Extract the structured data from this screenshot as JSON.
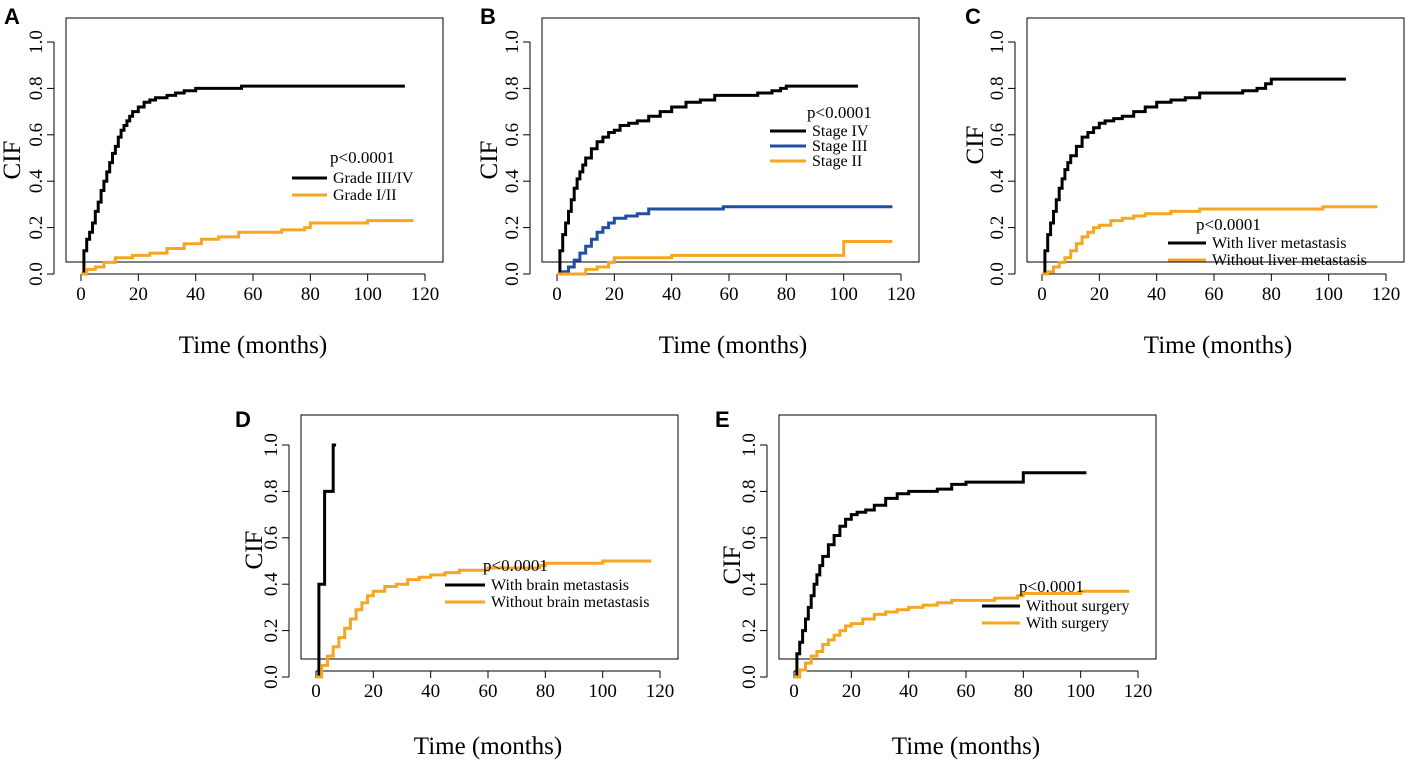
{
  "figure": {
    "panels": [
      "A",
      "B",
      "C",
      "D",
      "E"
    ]
  },
  "colors": {
    "black": "#000000",
    "orange": "#f5a623",
    "blue": "#1f4fa0"
  },
  "chart_data": [
    {
      "panel": "A",
      "type": "line",
      "xlabel": "Time (months)",
      "ylabel": "CIF",
      "xlim": [
        0,
        120
      ],
      "ylim": [
        0,
        1
      ],
      "xticks": [
        0,
        20,
        40,
        60,
        80,
        100,
        120
      ],
      "yticks": [
        0.0,
        0.2,
        0.4,
        0.6,
        0.8,
        1.0
      ],
      "pvalue": "p<0.0001",
      "series": [
        {
          "name": "Grade III/IV",
          "color": "#000000",
          "x": [
            0,
            1,
            2,
            3,
            4,
            5,
            6,
            7,
            8,
            9,
            10,
            11,
            12,
            13,
            14,
            15,
            16,
            17,
            18,
            20,
            22,
            24,
            26,
            28,
            30,
            33,
            36,
            40,
            45,
            50,
            56,
            60,
            70,
            80,
            90,
            100,
            113
          ],
          "y": [
            0.0,
            0.1,
            0.15,
            0.18,
            0.22,
            0.27,
            0.31,
            0.36,
            0.4,
            0.44,
            0.48,
            0.52,
            0.55,
            0.59,
            0.62,
            0.64,
            0.66,
            0.68,
            0.7,
            0.72,
            0.74,
            0.75,
            0.76,
            0.76,
            0.77,
            0.78,
            0.79,
            0.8,
            0.8,
            0.8,
            0.81,
            0.81,
            0.81,
            0.81,
            0.81,
            0.81,
            0.81
          ]
        },
        {
          "name": "Grade I/II",
          "color": "#f5a623",
          "x": [
            0,
            2,
            5,
            8,
            12,
            18,
            24,
            30,
            36,
            42,
            48,
            55,
            62,
            70,
            78,
            80,
            90,
            100,
            116
          ],
          "y": [
            0.0,
            0.02,
            0.03,
            0.05,
            0.07,
            0.08,
            0.09,
            0.11,
            0.13,
            0.15,
            0.16,
            0.18,
            0.18,
            0.19,
            0.2,
            0.22,
            0.22,
            0.23,
            0.23
          ]
        }
      ]
    },
    {
      "panel": "B",
      "type": "line",
      "xlabel": "Time (months)",
      "ylabel": "CIF",
      "xlim": [
        0,
        120
      ],
      "ylim": [
        0,
        1
      ],
      "xticks": [
        0,
        20,
        40,
        60,
        80,
        100,
        120
      ],
      "yticks": [
        0.0,
        0.2,
        0.4,
        0.6,
        0.8,
        1.0
      ],
      "pvalue": "p<0.0001",
      "series": [
        {
          "name": "Stage IV",
          "color": "#000000",
          "x": [
            0,
            1,
            2,
            3,
            4,
            5,
            6,
            7,
            8,
            9,
            10,
            12,
            14,
            16,
            18,
            20,
            22,
            25,
            28,
            32,
            36,
            40,
            45,
            50,
            55,
            60,
            70,
            75,
            78,
            80,
            90,
            105
          ],
          "y": [
            0.0,
            0.1,
            0.17,
            0.22,
            0.27,
            0.32,
            0.37,
            0.41,
            0.44,
            0.47,
            0.5,
            0.54,
            0.57,
            0.59,
            0.61,
            0.62,
            0.64,
            0.65,
            0.66,
            0.68,
            0.7,
            0.72,
            0.74,
            0.75,
            0.77,
            0.77,
            0.78,
            0.79,
            0.8,
            0.81,
            0.81,
            0.81
          ]
        },
        {
          "name": "Stage III",
          "color": "#1f4fa0",
          "x": [
            0,
            2,
            4,
            6,
            8,
            10,
            12,
            14,
            16,
            18,
            20,
            24,
            28,
            32,
            40,
            50,
            58,
            70,
            80,
            90,
            100,
            117
          ],
          "y": [
            0.0,
            0.01,
            0.03,
            0.06,
            0.09,
            0.12,
            0.15,
            0.18,
            0.2,
            0.22,
            0.24,
            0.25,
            0.26,
            0.28,
            0.28,
            0.28,
            0.29,
            0.29,
            0.29,
            0.29,
            0.29,
            0.29
          ]
        },
        {
          "name": "Stage II",
          "color": "#f5a623",
          "x": [
            0,
            5,
            10,
            14,
            18,
            20,
            30,
            40,
            60,
            80,
            99,
            100,
            117
          ],
          "y": [
            0.0,
            0.0,
            0.02,
            0.03,
            0.05,
            0.07,
            0.07,
            0.08,
            0.08,
            0.08,
            0.08,
            0.14,
            0.14
          ]
        }
      ]
    },
    {
      "panel": "C",
      "type": "line",
      "xlabel": "Time (months)",
      "ylabel": "CIF",
      "xlim": [
        0,
        120
      ],
      "ylim": [
        0,
        1
      ],
      "xticks": [
        0,
        20,
        40,
        60,
        80,
        100,
        120
      ],
      "yticks": [
        0.0,
        0.2,
        0.4,
        0.6,
        0.8,
        1.0
      ],
      "pvalue": "p<0.0001",
      "series": [
        {
          "name": "With liver metastasis",
          "color": "#000000",
          "x": [
            0,
            1,
            2,
            3,
            4,
            5,
            6,
            7,
            8,
            9,
            10,
            12,
            14,
            16,
            18,
            20,
            22,
            25,
            28,
            32,
            36,
            40,
            45,
            50,
            55,
            60,
            70,
            75,
            78,
            80,
            90,
            106
          ],
          "y": [
            0.0,
            0.1,
            0.17,
            0.22,
            0.27,
            0.32,
            0.37,
            0.41,
            0.45,
            0.48,
            0.51,
            0.55,
            0.59,
            0.61,
            0.63,
            0.65,
            0.66,
            0.67,
            0.68,
            0.7,
            0.72,
            0.74,
            0.75,
            0.76,
            0.78,
            0.78,
            0.79,
            0.8,
            0.82,
            0.84,
            0.84,
            0.84
          ]
        },
        {
          "name": "Without liver metastasis",
          "color": "#f5a623",
          "x": [
            0,
            2,
            4,
            6,
            8,
            10,
            12,
            14,
            16,
            18,
            20,
            24,
            28,
            32,
            36,
            40,
            45,
            50,
            55,
            60,
            70,
            80,
            90,
            98,
            117
          ],
          "y": [
            0.0,
            0.01,
            0.03,
            0.05,
            0.07,
            0.1,
            0.13,
            0.16,
            0.18,
            0.2,
            0.21,
            0.23,
            0.24,
            0.25,
            0.26,
            0.26,
            0.27,
            0.27,
            0.28,
            0.28,
            0.28,
            0.28,
            0.28,
            0.29,
            0.29
          ]
        }
      ]
    },
    {
      "panel": "D",
      "type": "line",
      "xlabel": "Time (months)",
      "ylabel": "CIF",
      "xlim": [
        0,
        120
      ],
      "ylim": [
        0,
        1
      ],
      "xticks": [
        0,
        20,
        40,
        60,
        80,
        100,
        120
      ],
      "yticks": [
        0.0,
        0.2,
        0.4,
        0.6,
        0.8,
        1.0
      ],
      "pvalue": "p<0.0001",
      "series": [
        {
          "name": "With brain metastasis",
          "color": "#000000",
          "x": [
            0,
            1,
            2,
            3,
            4,
            6,
            7
          ],
          "y": [
            0.0,
            0.4,
            0.4,
            0.8,
            0.8,
            1.0,
            1.0
          ]
        },
        {
          "name": "Without brain metastasis",
          "color": "#f5a623",
          "x": [
            0,
            2,
            4,
            6,
            8,
            10,
            12,
            14,
            16,
            18,
            20,
            24,
            28,
            32,
            36,
            40,
            45,
            50,
            55,
            60,
            70,
            78,
            80,
            90,
            100,
            117
          ],
          "y": [
            0.0,
            0.05,
            0.09,
            0.13,
            0.17,
            0.21,
            0.25,
            0.29,
            0.32,
            0.35,
            0.37,
            0.39,
            0.4,
            0.42,
            0.43,
            0.44,
            0.45,
            0.46,
            0.46,
            0.47,
            0.47,
            0.48,
            0.49,
            0.49,
            0.5,
            0.5
          ]
        }
      ]
    },
    {
      "panel": "E",
      "type": "line",
      "xlabel": "Time (months)",
      "ylabel": "CIF",
      "xlim": [
        0,
        120
      ],
      "ylim": [
        0,
        1
      ],
      "xticks": [
        0,
        20,
        40,
        60,
        80,
        100,
        120
      ],
      "yticks": [
        0.0,
        0.2,
        0.4,
        0.6,
        0.8,
        1.0
      ],
      "pvalue": "p<0.0001",
      "series": [
        {
          "name": "Without surgery",
          "color": "#000000",
          "x": [
            0,
            1,
            2,
            3,
            4,
            5,
            6,
            7,
            8,
            9,
            10,
            12,
            14,
            16,
            18,
            20,
            22,
            25,
            28,
            32,
            36,
            40,
            45,
            50,
            55,
            60,
            70,
            78,
            80,
            90,
            102
          ],
          "y": [
            0.0,
            0.1,
            0.15,
            0.2,
            0.25,
            0.3,
            0.35,
            0.4,
            0.44,
            0.48,
            0.52,
            0.57,
            0.61,
            0.65,
            0.68,
            0.7,
            0.71,
            0.72,
            0.74,
            0.77,
            0.79,
            0.8,
            0.8,
            0.81,
            0.83,
            0.84,
            0.84,
            0.84,
            0.88,
            0.88,
            0.88
          ]
        },
        {
          "name": "With surgery",
          "color": "#f5a623",
          "x": [
            0,
            2,
            4,
            6,
            8,
            10,
            12,
            14,
            16,
            18,
            20,
            24,
            28,
            32,
            36,
            40,
            45,
            50,
            55,
            60,
            70,
            78,
            80,
            90,
            100,
            117
          ],
          "y": [
            0.0,
            0.03,
            0.06,
            0.09,
            0.11,
            0.14,
            0.16,
            0.18,
            0.2,
            0.22,
            0.23,
            0.25,
            0.27,
            0.28,
            0.29,
            0.3,
            0.31,
            0.32,
            0.33,
            0.33,
            0.34,
            0.35,
            0.36,
            0.36,
            0.37,
            0.37
          ]
        }
      ]
    }
  ]
}
